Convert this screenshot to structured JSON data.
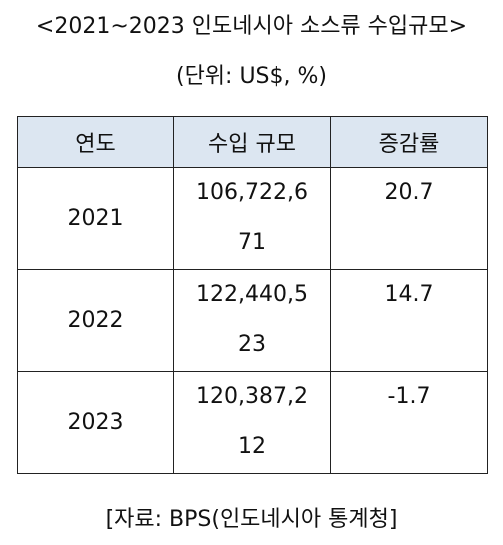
{
  "title": "<2021~2023 인도네시아 소스류 수입규모>",
  "unit": "(단위: US$, %)",
  "table": {
    "headers": [
      "연도",
      "수입 규모",
      "증감률"
    ],
    "rows": [
      {
        "year": "2021",
        "amount_line1": "106,722,6",
        "amount_line2": "71",
        "rate": "20.7"
      },
      {
        "year": "2022",
        "amount_line1": "122,440,5",
        "amount_line2": "23",
        "rate": "14.7"
      },
      {
        "year": "2023",
        "amount_line1": "120,387,2",
        "amount_line2": "12",
        "rate": "-1.7"
      }
    ]
  },
  "source": "[자료: BPS(인도네시아 통계청]"
}
